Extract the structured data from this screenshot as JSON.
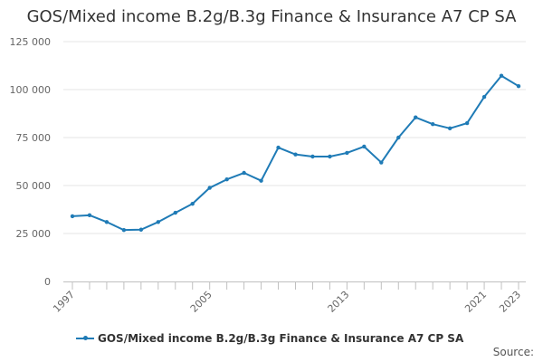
{
  "chart_data": {
    "type": "line",
    "title": "GOS/Mixed income B.2g/B.3g Finance & Insurance A7 CP SA",
    "x": [
      "1997",
      "1998",
      "1999",
      "2000",
      "2001",
      "2002",
      "2003",
      "2004",
      "2005",
      "2006",
      "2007",
      "2008",
      "2009",
      "2010",
      "2011",
      "2012",
      "2013",
      "2014",
      "2015",
      "2016",
      "2017",
      "2018",
      "2019",
      "2020",
      "2021",
      "2022",
      "2023"
    ],
    "series": [
      {
        "name": "GOS/Mixed income B.2g/B.3g Finance & Insurance A7 CP SA",
        "values": [
          34000,
          34500,
          31000,
          26800,
          27000,
          31000,
          35800,
          40500,
          48800,
          53200,
          56600,
          52500,
          69800,
          66200,
          65100,
          65100,
          67000,
          70300,
          62000,
          75000,
          85500,
          82000,
          79800,
          82500,
          96200,
          107200,
          101800
        ]
      }
    ],
    "xticks": [
      "1997",
      "2005",
      "2013",
      "2021",
      "2023"
    ],
    "yticks": [
      "0",
      "25 000",
      "50 000",
      "75 000",
      "100 000",
      "125 000"
    ],
    "ytick_values": [
      0,
      25000,
      50000,
      75000,
      100000,
      125000
    ],
    "ylim": [
      0,
      125000
    ],
    "xlabel": "",
    "ylabel": "",
    "legend_position": "bottom",
    "grid": true,
    "color": "#1f7bb6"
  },
  "source_label": "Source:"
}
